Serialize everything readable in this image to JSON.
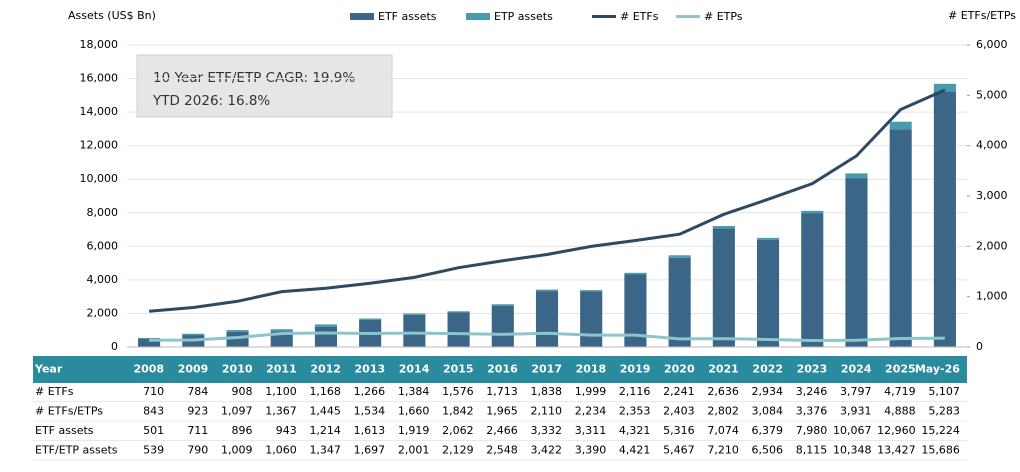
{
  "chart_data": {
    "type": "bar-line",
    "y_label": "Assets (US$ Bn)",
    "y2_label": "# ETFs/ETPs",
    "annotations": [
      "10 Year ETF/ETP CAGR: 19.9%",
      "YTD 2026: 16.8%"
    ],
    "categories": [
      "2008",
      "2009",
      "2010",
      "2011",
      "2012",
      "2013",
      "2014",
      "2015",
      "2016",
      "2017",
      "2018",
      "2019",
      "2020",
      "2021",
      "2022",
      "2023",
      "2024",
      "2025",
      "May-26"
    ],
    "series": [
      {
        "name": "ETF assets",
        "kind": "bar",
        "color": "#3b6688",
        "values": [
          501,
          711,
          896,
          943,
          1214,
          1613,
          1919,
          2062,
          2466,
          3332,
          3311,
          4321,
          5316,
          7074,
          6379,
          7980,
          10067,
          12960,
          15224
        ]
      },
      {
        "name": "ETP assets",
        "kind": "bar",
        "color": "#4a9aae",
        "values": [
          38,
          79,
          113,
          117,
          133,
          84,
          82,
          67,
          82,
          90,
          79,
          100,
          151,
          136,
          127,
          135,
          281,
          467,
          462
        ]
      },
      {
        "name": "# ETFs",
        "kind": "line",
        "axis": "y2",
        "color": "#2e4a62",
        "values": [
          710,
          784,
          908,
          1100,
          1168,
          1266,
          1384,
          1576,
          1713,
          1838,
          1999,
          2116,
          2241,
          2636,
          2934,
          3246,
          3797,
          4719,
          5107
        ]
      },
      {
        "name": "# ETPs",
        "kind": "line",
        "axis": "y2",
        "color": "#8cc6cc",
        "values": [
          133,
          139,
          189,
          267,
          277,
          268,
          276,
          266,
          252,
          272,
          235,
          237,
          162,
          166,
          150,
          130,
          134,
          169,
          176
        ]
      }
    ],
    "ylim": [
      0,
      18000
    ],
    "yticks": [
      0,
      {
        "value": 2000,
        "label": "2,000"
      },
      {
        "value": 4000,
        "label": "4,000"
      },
      {
        "value": 6000,
        "label": "6,000"
      },
      {
        "value": 8000,
        "label": "8,000"
      },
      {
        "value": 10000,
        "label": "10,000"
      },
      {
        "value": 12000,
        "label": "12,000"
      },
      {
        "value": 14000,
        "label": "14,000"
      },
      {
        "value": 16000,
        "label": "16,000"
      },
      {
        "value": 18000,
        "label": "18,000"
      }
    ],
    "y2lim": [
      0,
      6000
    ],
    "y2ticks": [
      0,
      {
        "value": 1000,
        "label": "1,000"
      },
      {
        "value": 2000,
        "label": "2,000"
      },
      {
        "value": 3000,
        "label": "3,000"
      },
      {
        "value": 4000,
        "label": "4,000"
      },
      {
        "value": 5000,
        "label": "5,000"
      },
      {
        "value": 6000,
        "label": "6,000"
      }
    ],
    "grid": true
  },
  "table": {
    "header": [
      "Year",
      "2008",
      "2009",
      "2010",
      "2011",
      "2012",
      "2013",
      "2014",
      "2015",
      "2016",
      "2017",
      "2018",
      "2019",
      "2020",
      "2021",
      "2022",
      "2023",
      "2024",
      "2025",
      "May-26"
    ],
    "rows": [
      [
        "# ETFs",
        "710",
        "784",
        "908",
        "1,100",
        "1,168",
        "1,266",
        "1,384",
        "1,576",
        "1,713",
        "1,838",
        "1,999",
        "2,116",
        "2,241",
        "2,636",
        "2,934",
        "3,246",
        "3,797",
        "4,719",
        "5,107"
      ],
      [
        "# ETFs/ETPs",
        "843",
        "923",
        "1,097",
        "1,367",
        "1,445",
        "1,534",
        "1,660",
        "1,842",
        "1,965",
        "2,110",
        "2,234",
        "2,353",
        "2,403",
        "2,802",
        "3,084",
        "3,376",
        "3,931",
        "4,888",
        "5,283"
      ],
      [
        "ETF assets",
        "501",
        "711",
        "896",
        "943",
        "1,214",
        "1,613",
        "1,919",
        "2,062",
        "2,466",
        "3,332",
        "3,311",
        "4,321",
        "5,316",
        "7,074",
        "6,379",
        "7,980",
        "10,067",
        "12,960",
        "15,224"
      ],
      [
        "ETF/ETP assets",
        "539",
        "790",
        "1,009",
        "1,060",
        "1,347",
        "1,697",
        "2,001",
        "2,129",
        "2,548",
        "3,422",
        "3,390",
        "4,421",
        "5,467",
        "7,210",
        "6,506",
        "8,115",
        "10,348",
        "13,427",
        "15,686"
      ]
    ]
  }
}
